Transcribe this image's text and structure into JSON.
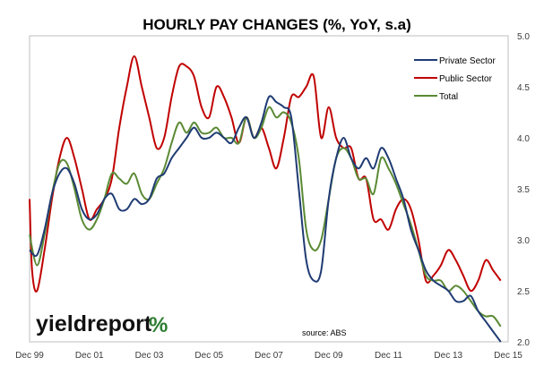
{
  "chart_data": {
    "type": "line",
    "title": "HOURLY PAY CHANGES (%, YoY, s.a)",
    "x_tick_labels": [
      "Dec 99",
      "Dec 01",
      "Dec 03",
      "Dec 05",
      "Dec 07",
      "Dec 09",
      "Dec 11",
      "Dec 13",
      "Dec 15"
    ],
    "y_tick_labels": [
      "2.0",
      "2.5",
      "3.0",
      "3.5",
      "4.0",
      "4.5",
      "5.0"
    ],
    "ylim": [
      2.0,
      5.0
    ],
    "y_axis_side": "right",
    "xlim": [
      "1999-12",
      "2015-12"
    ],
    "grid": false,
    "legend_position": "top-right",
    "source": "source: ABS",
    "logo_text": "yieldreport",
    "logo_pct": "%",
    "series": [
      {
        "name": "Private Sector",
        "color": "#1f3b73",
        "points": [
          [
            "1999-12",
            2.9
          ],
          [
            "2000-03",
            2.85
          ],
          [
            "2000-06",
            3.1
          ],
          [
            "2000-09",
            3.45
          ],
          [
            "2000-12",
            3.65
          ],
          [
            "2001-03",
            3.7
          ],
          [
            "2001-06",
            3.55
          ],
          [
            "2001-09",
            3.3
          ],
          [
            "2001-12",
            3.2
          ],
          [
            "2002-03",
            3.25
          ],
          [
            "2002-06",
            3.4
          ],
          [
            "2002-09",
            3.45
          ],
          [
            "2002-12",
            3.3
          ],
          [
            "2003-03",
            3.3
          ],
          [
            "2003-06",
            3.4
          ],
          [
            "2003-09",
            3.35
          ],
          [
            "2003-12",
            3.4
          ],
          [
            "2004-03",
            3.6
          ],
          [
            "2004-06",
            3.65
          ],
          [
            "2004-09",
            3.8
          ],
          [
            "2004-12",
            3.9
          ],
          [
            "2005-03",
            4.0
          ],
          [
            "2005-06",
            4.1
          ],
          [
            "2005-09",
            4.0
          ],
          [
            "2005-12",
            4.0
          ],
          [
            "2006-03",
            4.05
          ],
          [
            "2006-06",
            4.0
          ],
          [
            "2006-09",
            3.95
          ],
          [
            "2006-12",
            4.1
          ],
          [
            "2007-03",
            4.2
          ],
          [
            "2007-06",
            4.0
          ],
          [
            "2007-09",
            4.15
          ],
          [
            "2007-12",
            4.4
          ],
          [
            "2008-03",
            4.35
          ],
          [
            "2008-06",
            4.3
          ],
          [
            "2008-09",
            4.2
          ],
          [
            "2008-12",
            3.5
          ],
          [
            "2009-03",
            2.8
          ],
          [
            "2009-06",
            2.6
          ],
          [
            "2009-09",
            2.7
          ],
          [
            "2009-12",
            3.4
          ],
          [
            "2010-03",
            3.8
          ],
          [
            "2010-06",
            4.0
          ],
          [
            "2010-09",
            3.8
          ],
          [
            "2010-12",
            3.7
          ],
          [
            "2011-03",
            3.8
          ],
          [
            "2011-06",
            3.7
          ],
          [
            "2011-09",
            3.9
          ],
          [
            "2011-12",
            3.8
          ],
          [
            "2012-03",
            3.6
          ],
          [
            "2012-06",
            3.4
          ],
          [
            "2012-09",
            3.1
          ],
          [
            "2012-12",
            2.9
          ],
          [
            "2013-03",
            2.7
          ],
          [
            "2013-06",
            2.6
          ],
          [
            "2013-09",
            2.55
          ],
          [
            "2013-12",
            2.5
          ],
          [
            "2014-03",
            2.4
          ],
          [
            "2014-06",
            2.4
          ],
          [
            "2014-09",
            2.45
          ],
          [
            "2014-12",
            2.3
          ],
          [
            "2015-03",
            2.2
          ],
          [
            "2015-06",
            2.1
          ],
          [
            "2015-09",
            2.0
          ]
        ]
      },
      {
        "name": "Public Sector",
        "color": "#c00000",
        "points": [
          [
            "1999-12",
            3.4
          ],
          [
            "2000-01",
            2.7
          ],
          [
            "2000-03",
            2.5
          ],
          [
            "2000-06",
            2.9
          ],
          [
            "2000-09",
            3.4
          ],
          [
            "2000-12",
            3.8
          ],
          [
            "2001-03",
            4.0
          ],
          [
            "2001-06",
            3.8
          ],
          [
            "2001-09",
            3.5
          ],
          [
            "2001-12",
            3.2
          ],
          [
            "2002-03",
            3.3
          ],
          [
            "2002-06",
            3.4
          ],
          [
            "2002-09",
            3.6
          ],
          [
            "2002-12",
            4.1
          ],
          [
            "2003-03",
            4.5
          ],
          [
            "2003-06",
            4.8
          ],
          [
            "2003-09",
            4.5
          ],
          [
            "2003-12",
            4.2
          ],
          [
            "2004-03",
            3.9
          ],
          [
            "2004-06",
            4.0
          ],
          [
            "2004-09",
            4.4
          ],
          [
            "2004-12",
            4.7
          ],
          [
            "2005-03",
            4.7
          ],
          [
            "2005-06",
            4.6
          ],
          [
            "2005-09",
            4.3
          ],
          [
            "2005-12",
            4.2
          ],
          [
            "2006-03",
            4.5
          ],
          [
            "2006-06",
            4.4
          ],
          [
            "2006-09",
            4.2
          ],
          [
            "2006-12",
            3.95
          ],
          [
            "2007-03",
            4.2
          ],
          [
            "2007-06",
            4.0
          ],
          [
            "2007-09",
            4.1
          ],
          [
            "2007-12",
            3.9
          ],
          [
            "2008-03",
            3.7
          ],
          [
            "2008-06",
            4.0
          ],
          [
            "2008-09",
            4.4
          ],
          [
            "2008-12",
            4.4
          ],
          [
            "2009-03",
            4.5
          ],
          [
            "2009-06",
            4.6
          ],
          [
            "2009-09",
            4.0
          ],
          [
            "2009-12",
            4.3
          ],
          [
            "2010-03",
            4.0
          ],
          [
            "2010-06",
            3.9
          ],
          [
            "2010-09",
            3.9
          ],
          [
            "2010-12",
            3.6
          ],
          [
            "2011-03",
            3.6
          ],
          [
            "2011-06",
            3.2
          ],
          [
            "2011-09",
            3.2
          ],
          [
            "2011-12",
            3.1
          ],
          [
            "2012-03",
            3.3
          ],
          [
            "2012-06",
            3.4
          ],
          [
            "2012-09",
            3.3
          ],
          [
            "2012-12",
            3.0
          ],
          [
            "2013-03",
            2.6
          ],
          [
            "2013-06",
            2.65
          ],
          [
            "2013-09",
            2.75
          ],
          [
            "2013-12",
            2.9
          ],
          [
            "2014-03",
            2.8
          ],
          [
            "2014-06",
            2.65
          ],
          [
            "2014-09",
            2.5
          ],
          [
            "2014-12",
            2.6
          ],
          [
            "2015-03",
            2.8
          ],
          [
            "2015-06",
            2.7
          ],
          [
            "2015-09",
            2.6
          ]
        ]
      },
      {
        "name": "Total",
        "color": "#5a8a34",
        "points": [
          [
            "1999-12",
            3.05
          ],
          [
            "2000-03",
            2.75
          ],
          [
            "2000-06",
            3.05
          ],
          [
            "2000-09",
            3.45
          ],
          [
            "2000-12",
            3.75
          ],
          [
            "2001-03",
            3.75
          ],
          [
            "2001-06",
            3.5
          ],
          [
            "2001-09",
            3.2
          ],
          [
            "2001-12",
            3.1
          ],
          [
            "2002-03",
            3.2
          ],
          [
            "2002-06",
            3.4
          ],
          [
            "2002-09",
            3.65
          ],
          [
            "2002-12",
            3.6
          ],
          [
            "2003-03",
            3.55
          ],
          [
            "2003-06",
            3.65
          ],
          [
            "2003-09",
            3.45
          ],
          [
            "2003-12",
            3.4
          ],
          [
            "2004-03",
            3.55
          ],
          [
            "2004-06",
            3.7
          ],
          [
            "2004-09",
            3.95
          ],
          [
            "2004-12",
            4.15
          ],
          [
            "2005-03",
            4.05
          ],
          [
            "2005-06",
            4.15
          ],
          [
            "2005-09",
            4.05
          ],
          [
            "2005-12",
            4.05
          ],
          [
            "2006-03",
            4.1
          ],
          [
            "2006-06",
            4.0
          ],
          [
            "2006-09",
            4.0
          ],
          [
            "2006-12",
            3.95
          ],
          [
            "2007-03",
            4.2
          ],
          [
            "2007-06",
            4.0
          ],
          [
            "2007-09",
            4.1
          ],
          [
            "2007-12",
            4.3
          ],
          [
            "2008-03",
            4.2
          ],
          [
            "2008-06",
            4.25
          ],
          [
            "2008-09",
            4.15
          ],
          [
            "2008-12",
            3.8
          ],
          [
            "2009-03",
            3.1
          ],
          [
            "2009-06",
            2.9
          ],
          [
            "2009-09",
            3.0
          ],
          [
            "2009-12",
            3.4
          ],
          [
            "2010-03",
            3.8
          ],
          [
            "2010-06",
            3.9
          ],
          [
            "2010-09",
            3.8
          ],
          [
            "2010-12",
            3.6
          ],
          [
            "2011-03",
            3.6
          ],
          [
            "2011-06",
            3.45
          ],
          [
            "2011-09",
            3.8
          ],
          [
            "2011-12",
            3.7
          ],
          [
            "2012-03",
            3.55
          ],
          [
            "2012-06",
            3.35
          ],
          [
            "2012-09",
            3.15
          ],
          [
            "2012-12",
            2.9
          ],
          [
            "2013-03",
            2.65
          ],
          [
            "2013-06",
            2.6
          ],
          [
            "2013-09",
            2.6
          ],
          [
            "2013-12",
            2.5
          ],
          [
            "2014-03",
            2.55
          ],
          [
            "2014-06",
            2.5
          ],
          [
            "2014-09",
            2.4
          ],
          [
            "2014-12",
            2.3
          ],
          [
            "2015-03",
            2.25
          ],
          [
            "2015-06",
            2.25
          ],
          [
            "2015-09",
            2.15
          ]
        ]
      }
    ]
  }
}
